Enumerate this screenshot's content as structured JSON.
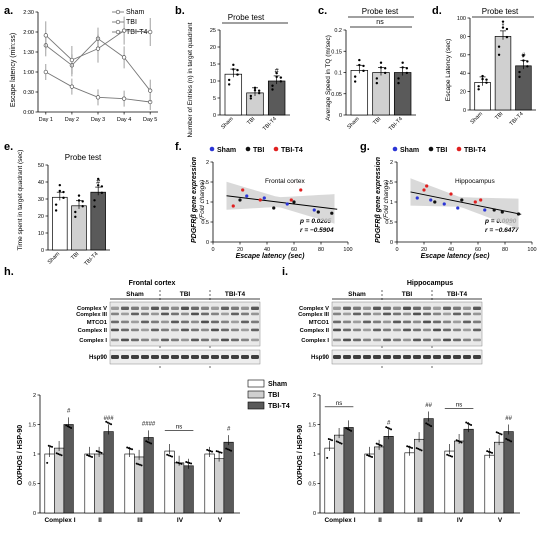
{
  "panels": {
    "a": {
      "letter": "a.",
      "ylabel": "Escape latency (min:ss)",
      "yticks": [
        "0:00",
        "0:30",
        "1:00",
        "1:30",
        "2:00",
        "2:30"
      ],
      "legend": [
        "Sham",
        "TBI",
        "TBI-T4"
      ]
    },
    "b": {
      "letter": "b.",
      "title": "Probe test",
      "ylabel": "Number of Entries (n) in target quadrant",
      "sig": {
        "TBI-T4": "#"
      }
    },
    "c": {
      "letter": "c.",
      "title": "Probe test",
      "ylabel": "Average Speed in TQ (m/sec)",
      "ns": "ns"
    },
    "d": {
      "letter": "d.",
      "title": "Probe test",
      "ylabel": "Escape Latency (sec)",
      "sig": {
        "TBI": "*",
        "TBI-T4": "#"
      }
    },
    "e": {
      "letter": "e.",
      "title": "Probe test",
      "ylabel": "Time spent in target quadrant (sec)",
      "sig": {
        "TBI-T4": "#"
      }
    },
    "f": {
      "letter": "f.",
      "region": "Frontal cortex",
      "ylabel1": "PDGFRβ gene expression",
      "ylabel2": "(Fold change)",
      "xlabel": "Escape latency (sec)",
      "p": "p = 0.0205",
      "r": "r = −0.5904",
      "legend": [
        "Sham",
        "TBI",
        "TBI-T4"
      ]
    },
    "g": {
      "letter": "g.",
      "region": "Hippocampus",
      "ylabel1": "PDGFRβ gene expression",
      "ylabel2": "(Fold change)",
      "xlabel": "Escape latency (sec)",
      "p": "p = 0.0090",
      "r": "r = −0.6477",
      "legend": [
        "Sham",
        "TBI",
        "TBI-T4"
      ]
    },
    "h": {
      "letter": "h.",
      "region": "Frontal cortex",
      "groups": [
        "Sham",
        "TBI",
        "TBI-T4"
      ],
      "bands": [
        "Complex V",
        "Complex III",
        "MTCO1",
        "Complex II",
        "Complex I"
      ],
      "loading": "Hsp90"
    },
    "i": {
      "letter": "i.",
      "region": "Hippocampus",
      "groups": [
        "Sham",
        "TBI",
        "TBI-T4"
      ],
      "bands": [
        "Complex V",
        "Complex III",
        "MTCO1",
        "Complex II",
        "Complex I"
      ],
      "loading": "Hsp90"
    },
    "h_bar": {
      "ylabel": "OXPHOS / HSP-90",
      "sig": [
        "#",
        "###",
        "####",
        "ns",
        "#"
      ]
    },
    "i_bar": {
      "ylabel": "OXPHOS / HSP-90",
      "sig": [
        "ns",
        "#",
        "##",
        "ns",
        "##"
      ]
    },
    "oxphos_legend": [
      "Sham",
      "TBI",
      "TBI-T4"
    ]
  },
  "colors": {
    "sham": "#ffffff",
    "tbi": "#d0d0d0",
    "t4": "#5a5a5a",
    "dotSham": "#2b35d6",
    "dotTBI": "#111111",
    "dotT4": "#e02020",
    "ci": "#cfcfcf"
  },
  "chart_data": [
    {
      "id": "a",
      "type": "line",
      "categories": [
        "Day 1",
        "Day 2",
        "Day 3",
        "Day 4",
        "Day 5"
      ],
      "ylim": [
        0,
        150
      ],
      "series": [
        {
          "name": "Sham",
          "values": [
            60,
            38,
            22,
            20,
            15
          ]
        },
        {
          "name": "TBI",
          "values": [
            100,
            70,
            110,
            82,
            32
          ]
        },
        {
          "name": "TBI-T4",
          "values": [
            115,
            78,
            95,
            122,
            120
          ]
        }
      ]
    },
    {
      "id": "b",
      "type": "bar",
      "categories": [
        "Sham",
        "TBI",
        "TBI-T4"
      ],
      "values": [
        12,
        6.5,
        10
      ],
      "ylim": [
        0,
        25
      ],
      "yticks": [
        0,
        5,
        10,
        15,
        20,
        25
      ]
    },
    {
      "id": "c",
      "type": "bar",
      "categories": [
        "Sham",
        "TBI",
        "TBI-T4"
      ],
      "values": [
        0.105,
        0.1,
        0.1
      ],
      "ylim": [
        0,
        0.2
      ],
      "yticks": [
        0,
        0.05,
        0.1,
        0.15,
        0.2
      ]
    },
    {
      "id": "d",
      "type": "bar",
      "categories": [
        "Sham",
        "TBI",
        "TBI-T4"
      ],
      "values": [
        30,
        80,
        48
      ],
      "ylim": [
        0,
        100
      ],
      "yticks": [
        0,
        20,
        40,
        60,
        80,
        100
      ]
    },
    {
      "id": "e",
      "type": "bar",
      "categories": [
        "Sham",
        "TBI",
        "TBI-T4"
      ],
      "values": [
        31,
        26,
        34
      ],
      "ylim": [
        0,
        50
      ],
      "yticks": [
        0,
        10,
        20,
        30,
        40,
        50
      ]
    },
    {
      "id": "f",
      "type": "scatter",
      "xlim": [
        0,
        100
      ],
      "ylim": [
        0,
        2
      ],
      "xticks": [
        0,
        20,
        40,
        60,
        80,
        100
      ],
      "yticks": [
        0,
        0.5,
        1,
        1.5,
        2
      ],
      "series": [
        {
          "name": "Sham",
          "points": [
            [
              25,
              1.15
            ],
            [
              38,
              1.1
            ],
            [
              55,
              0.95
            ],
            [
              75,
              0.8
            ]
          ]
        },
        {
          "name": "TBI",
          "points": [
            [
              20,
              1.05
            ],
            [
              45,
              0.85
            ],
            [
              60,
              1.0
            ],
            [
              78,
              0.75
            ],
            [
              88,
              0.72
            ]
          ]
        },
        {
          "name": "TBI-T4",
          "points": [
            [
              15,
              0.9
            ],
            [
              22,
              1.3
            ],
            [
              35,
              1.05
            ],
            [
              58,
              1.05
            ],
            [
              65,
              1.3
            ]
          ]
        }
      ]
    },
    {
      "id": "g",
      "type": "scatter",
      "xlim": [
        0,
        100
      ],
      "ylim": [
        0,
        2
      ],
      "xticks": [
        0,
        20,
        40,
        60,
        80,
        100
      ],
      "yticks": [
        0,
        0.5,
        1,
        1.5,
        2
      ],
      "series": [
        {
          "name": "Sham",
          "points": [
            [
              15,
              1.1
            ],
            [
              25,
              1.05
            ],
            [
              35,
              0.95
            ],
            [
              45,
              0.85
            ],
            [
              65,
              0.8
            ]
          ]
        },
        {
          "name": "TBI",
          "points": [
            [
              28,
              1.0
            ],
            [
              48,
              1.05
            ],
            [
              72,
              0.8
            ],
            [
              78,
              0.75
            ],
            [
              90,
              0.7
            ]
          ]
        },
        {
          "name": "TBI-T4",
          "points": [
            [
              20,
              1.3
            ],
            [
              22,
              1.4
            ],
            [
              40,
              1.2
            ],
            [
              58,
              1.0
            ],
            [
              62,
              1.05
            ]
          ]
        }
      ]
    },
    {
      "id": "h_bar",
      "type": "bar",
      "categories": [
        "Complex I",
        "II",
        "III",
        "IV",
        "V"
      ],
      "ylim": [
        0,
        2
      ],
      "yticks": [
        0,
        0.5,
        1,
        1.5,
        2
      ],
      "series": [
        {
          "name": "Sham",
          "values": [
            1.0,
            1.0,
            1.0,
            1.05,
            1.0
          ]
        },
        {
          "name": "TBI",
          "values": [
            1.1,
            1.0,
            0.95,
            0.85,
            0.92
          ]
        },
        {
          "name": "TBI-T4",
          "values": [
            1.5,
            1.38,
            1.28,
            0.8,
            1.2
          ]
        }
      ]
    },
    {
      "id": "i_bar",
      "type": "bar",
      "categories": [
        "Complex I",
        "II",
        "III",
        "IV",
        "V"
      ],
      "ylim": [
        0,
        2
      ],
      "yticks": [
        0,
        0.5,
        1,
        1.5,
        2
      ],
      "series": [
        {
          "name": "Sham",
          "values": [
            1.1,
            1.0,
            1.02,
            1.05,
            0.98
          ]
        },
        {
          "name": "TBI",
          "values": [
            1.32,
            1.12,
            1.25,
            1.22,
            1.2
          ]
        },
        {
          "name": "TBI-T4",
          "values": [
            1.45,
            1.3,
            1.6,
            1.42,
            1.38
          ]
        }
      ]
    }
  ]
}
